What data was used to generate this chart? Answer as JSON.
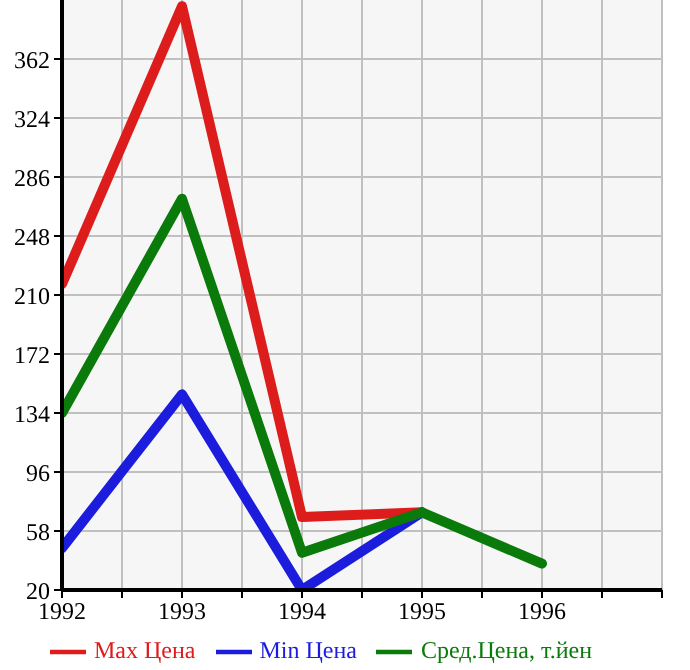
{
  "chart_data": {
    "type": "line",
    "x": [
      1992,
      1993,
      1994,
      1995,
      1996
    ],
    "series": [
      {
        "name": "Max Цена",
        "color": "#dd1c1c",
        "values": [
          217,
          396,
          67,
          70,
          null
        ]
      },
      {
        "name": "Min Цена",
        "color": "#1c1cdd",
        "values": [
          47,
          146,
          20,
          70,
          null
        ]
      },
      {
        "name": "Сред.Цена, т.йен",
        "color": "#0a7a0a",
        "values": [
          134,
          272,
          44,
          70,
          37
        ]
      }
    ],
    "xlim": [
      1992,
      1997
    ],
    "xticks": [
      1992,
      {
        "value": 1992.5,
        "label": null
      },
      1993,
      {
        "value": 1993.5,
        "label": null
      },
      1994,
      {
        "value": 1994.5,
        "label": null
      },
      1995,
      {
        "value": 1995.5,
        "label": null
      },
      1996,
      {
        "value": 1996.5,
        "label": null
      },
      {
        "value": 1997,
        "label": null
      }
    ],
    "ylim": [
      20,
      400
    ],
    "yticks": [
      20,
      58,
      96,
      134,
      172,
      210,
      248,
      286,
      324,
      362
    ],
    "grid": true,
    "legend": "bottom",
    "marker": "none",
    "line_style": "solid"
  }
}
